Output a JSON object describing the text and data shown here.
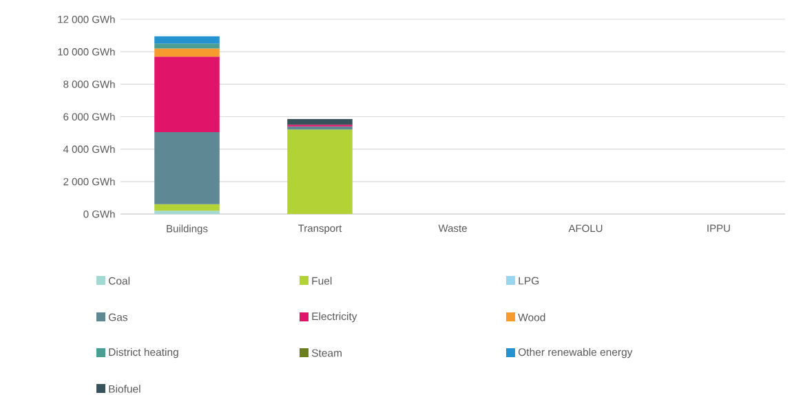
{
  "chart_data": {
    "type": "bar",
    "stacked": true,
    "categories": [
      "Buildings",
      "Transport",
      "Waste",
      "AFOLU",
      "IPPU"
    ],
    "series": [
      {
        "name": "Coal",
        "color": "#a3d9d3",
        "values": [
          200,
          null,
          null,
          null,
          null
        ]
      },
      {
        "name": "Fuel",
        "color": "#b2d235",
        "values": [
          400,
          5200,
          null,
          null,
          null
        ]
      },
      {
        "name": "LPG",
        "color": "#99d5ef",
        "values": [
          null,
          null,
          null,
          null,
          null
        ]
      },
      {
        "name": "Gas",
        "color": "#5e8894",
        "values": [
          4450,
          200,
          null,
          null,
          null
        ]
      },
      {
        "name": "Electricity",
        "color": "#e01468",
        "values": [
          4650,
          100,
          null,
          null,
          null
        ]
      },
      {
        "name": "Wood",
        "color": "#f79b2e",
        "values": [
          500,
          null,
          null,
          null,
          null
        ]
      },
      {
        "name": "District heating",
        "color": "#4a9e93",
        "values": [
          300,
          null,
          null,
          null,
          null
        ]
      },
      {
        "name": "Steam",
        "color": "#6b7f1c",
        "values": [
          null,
          null,
          null,
          null,
          null
        ]
      },
      {
        "name": "Other renewable energy",
        "color": "#2693d1",
        "values": [
          450,
          null,
          null,
          null,
          null
        ]
      },
      {
        "name": "Biofuel",
        "color": "#37525b",
        "values": [
          null,
          350,
          null,
          null,
          null
        ]
      }
    ],
    "ylim": [
      0,
      12000
    ],
    "yticks": [
      {
        "value": 0,
        "label": "0 GWh"
      },
      {
        "value": 2000,
        "label": "2 000 GWh"
      },
      {
        "value": 4000,
        "label": "4 000 GWh"
      },
      {
        "value": 6000,
        "label": "6 000 GWh"
      },
      {
        "value": 8000,
        "label": "8 000 GWh"
      },
      {
        "value": 10000,
        "label": "10 000 GWh"
      },
      {
        "value": 12000,
        "label": "12 000 GWh"
      }
    ],
    "grid": "y",
    "legend": "bottom"
  }
}
